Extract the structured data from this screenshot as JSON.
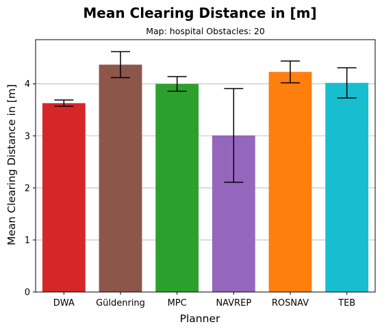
{
  "chart_data": {
    "type": "bar",
    "title": "Mean Clearing Distance in [m]",
    "subtitle": "Map: hospital Obstacles: 20",
    "xlabel": "Planner",
    "ylabel": "Mean Clearing Distance in [m]",
    "categories": [
      "DWA",
      "Güldenring",
      "MPC",
      "NAVREP",
      "ROSNAV",
      "TEB"
    ],
    "values": [
      3.63,
      4.37,
      4.0,
      3.01,
      4.23,
      4.02
    ],
    "error": [
      0.06,
      0.25,
      0.14,
      0.9,
      0.21,
      0.29
    ],
    "colors": [
      "#d62728",
      "#8c564b",
      "#2ca02c",
      "#9467bd",
      "#ff7f0e",
      "#17becf"
    ],
    "ylim": [
      0,
      4.85
    ],
    "yticks": [
      0,
      1,
      2,
      3,
      4
    ],
    "grid": "y"
  }
}
